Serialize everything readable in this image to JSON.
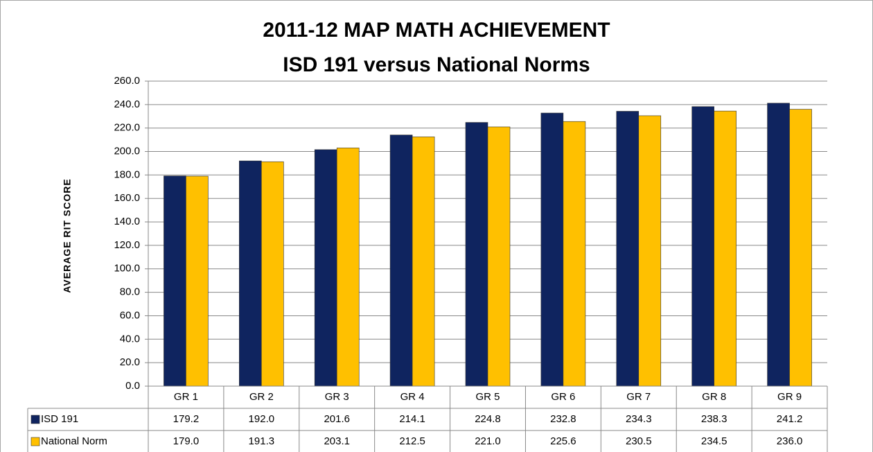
{
  "chart_data": {
    "type": "bar",
    "title": "2011-12 MAP MATH ACHIEVEMENT",
    "subtitle": "ISD 191 versus National Norms",
    "y_label": "AVERAGE RIT SCORE",
    "categories": [
      "GR 1",
      "GR 2",
      "GR 3",
      "GR 4",
      "GR 5",
      "GR 6",
      "GR 7",
      "GR 8",
      "GR 9"
    ],
    "series": [
      {
        "name": "ISD 191",
        "color": "#0f245f",
        "values": [
          179.2,
          192.0,
          201.6,
          214.1,
          224.8,
          232.8,
          234.3,
          238.3,
          241.2
        ],
        "value_labels": [
          "179.2",
          "192.0",
          "201.6",
          "214.1",
          "224.8",
          "232.8",
          "234.3",
          "238.3",
          "241.2"
        ]
      },
      {
        "name": "National Norm",
        "color": "#ffc000",
        "values": [
          179.0,
          191.3,
          203.1,
          212.5,
          221.0,
          225.6,
          230.5,
          234.5,
          236.0
        ],
        "value_labels": [
          "179.0",
          "191.3",
          "203.1",
          "212.5",
          "221.0",
          "225.6",
          "230.5",
          "234.5",
          "236.0"
        ]
      }
    ],
    "ylim": [
      0,
      260
    ],
    "yticks": [
      {
        "value": 0,
        "label": "0.0"
      },
      {
        "value": 20,
        "label": "20.0"
      },
      {
        "value": 40,
        "label": "40.0"
      },
      {
        "value": 60,
        "label": "60.0"
      },
      {
        "value": 80,
        "label": "80.0"
      },
      {
        "value": 100,
        "label": "100.0"
      },
      {
        "value": 120,
        "label": "120.0"
      },
      {
        "value": 140,
        "label": "140.0"
      },
      {
        "value": 160,
        "label": "160.0"
      },
      {
        "value": 180,
        "label": "180.0"
      },
      {
        "value": 200,
        "label": "200.0"
      },
      {
        "value": 220,
        "label": "220.0"
      },
      {
        "value": 240,
        "label": "240.0"
      },
      {
        "value": 260,
        "label": "260.0"
      }
    ],
    "grid": true
  }
}
